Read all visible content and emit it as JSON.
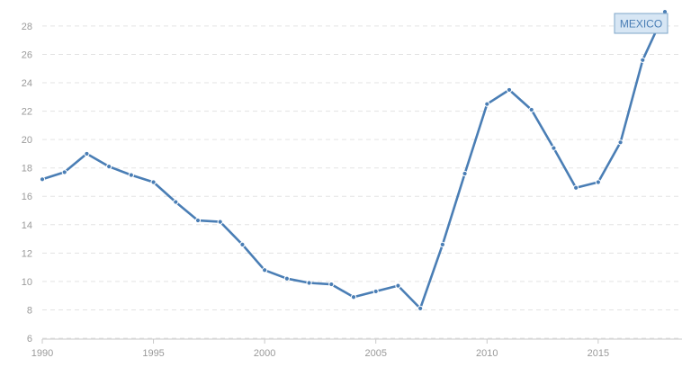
{
  "chart_data": {
    "type": "line",
    "title": "",
    "xlabel": "",
    "ylabel": "",
    "x": [
      1990,
      1991,
      1992,
      1993,
      1994,
      1995,
      1996,
      1997,
      1998,
      1999,
      2000,
      2001,
      2002,
      2003,
      2004,
      2005,
      2006,
      2007,
      2008,
      2009,
      2010,
      2011,
      2012,
      2013,
      2014,
      2015,
      2016,
      2017,
      2018
    ],
    "series": [
      {
        "name": "MEXICO",
        "color": "#4a7eb5",
        "values": [
          17.2,
          17.7,
          19.0,
          18.1,
          17.5,
          17.0,
          15.6,
          14.3,
          14.2,
          12.6,
          10.8,
          10.2,
          9.9,
          9.8,
          8.9,
          9.3,
          9.7,
          8.1,
          12.6,
          17.6,
          22.5,
          23.5,
          22.1,
          19.4,
          16.6,
          17.0,
          19.8,
          25.6,
          29.0
        ]
      }
    ],
    "ylim": [
      6,
      29.2
    ],
    "y_ticks": [
      "6",
      "8",
      "10",
      "12",
      "14",
      "16",
      "18",
      "20",
      "22",
      "24",
      "26",
      "28"
    ],
    "x_ticks": [
      "1990",
      "1995",
      "2000",
      "2005",
      "2010",
      "2015"
    ],
    "grid": true,
    "legend_placement": "top-right",
    "colors": {
      "legend_fill": "#d7e6f4",
      "legend_border": "#7ea5c9",
      "legend_text": "#4a7eb5"
    }
  }
}
